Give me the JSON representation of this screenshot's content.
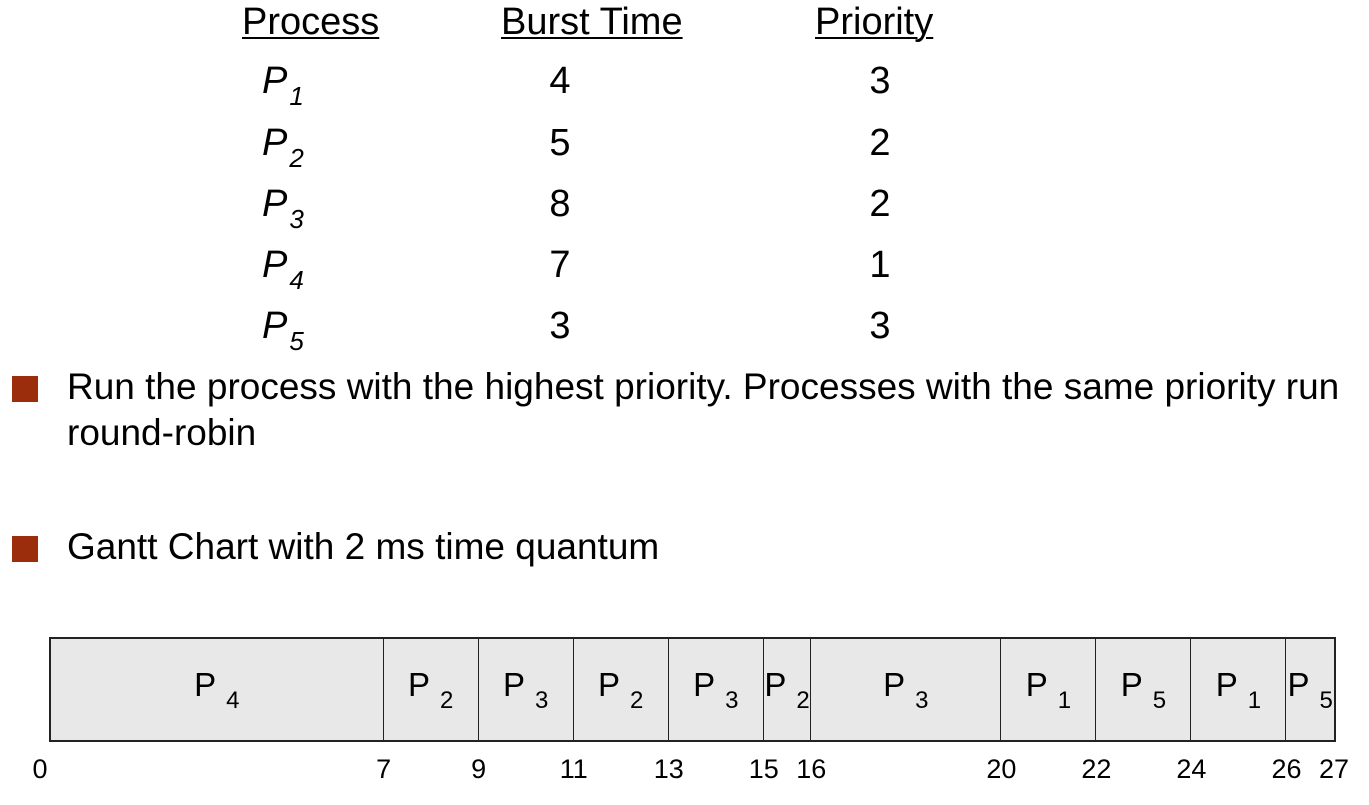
{
  "table": {
    "headers": {
      "process": "Process",
      "burst_time": "Burst Time",
      "priority": "Priority"
    },
    "rows": [
      {
        "process": "P",
        "sub": "1",
        "burst_time": "4",
        "priority": "3"
      },
      {
        "process": "P",
        "sub": "2",
        "burst_time": "5",
        "priority": "2"
      },
      {
        "process": "P",
        "sub": "3",
        "burst_time": "8",
        "priority": "2"
      },
      {
        "process": "P",
        "sub": "4",
        "burst_time": "7",
        "priority": "1"
      },
      {
        "process": "P",
        "sub": "5",
        "burst_time": "3",
        "priority": "3"
      }
    ]
  },
  "bullets": [
    {
      "text": "Run the process with the highest priority. Processes with the same priority run round-robin"
    },
    {
      "text": "Gantt Chart with 2 ms time quantum"
    }
  ],
  "colors": {
    "bullet": "#9b2c0c",
    "gantt_fill": "#e8e8e8"
  },
  "gantt": {
    "start": 0,
    "end": 27,
    "segments": [
      {
        "process": "P",
        "sub": "4",
        "start": 0,
        "end": 7
      },
      {
        "process": "P",
        "sub": "2",
        "start": 7,
        "end": 9
      },
      {
        "process": "P",
        "sub": "3",
        "start": 9,
        "end": 11
      },
      {
        "process": "P",
        "sub": "2",
        "start": 11,
        "end": 13
      },
      {
        "process": "P",
        "sub": "3",
        "start": 13,
        "end": 15
      },
      {
        "process": "P",
        "sub": "2",
        "start": 15,
        "end": 16
      },
      {
        "process": "P",
        "sub": "3",
        "start": 16,
        "end": 20
      },
      {
        "process": "P",
        "sub": "1",
        "start": 20,
        "end": 22
      },
      {
        "process": "P",
        "sub": "5",
        "start": 22,
        "end": 24
      },
      {
        "process": "P",
        "sub": "1",
        "start": 24,
        "end": 26
      },
      {
        "process": "P",
        "sub": "5",
        "start": 26,
        "end": 27
      }
    ],
    "ticks": [
      "0",
      "7",
      "9",
      "11",
      "13",
      "15",
      "16",
      "20",
      "22",
      "24",
      "26",
      "27"
    ]
  }
}
